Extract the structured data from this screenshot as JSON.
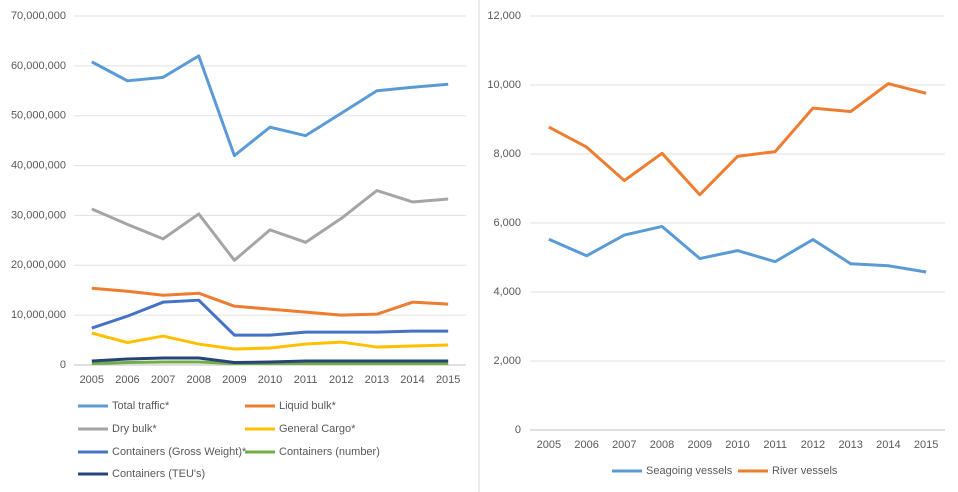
{
  "chart_data": [
    {
      "type": "line",
      "categories": [
        "2005",
        "2006",
        "2007",
        "2008",
        "2009",
        "2010",
        "2011",
        "2012",
        "2013",
        "2014",
        "2015"
      ],
      "ylim": [
        0,
        70000000
      ],
      "yticks": [
        0,
        {
          "value": 10000000,
          "label": "10,000,000"
        },
        {
          "value": 20000000,
          "label": "20,000,000"
        },
        {
          "value": 30000000,
          "label": "30,000,000"
        },
        {
          "value": 40000000,
          "label": "40,000,000"
        },
        {
          "value": 50000000,
          "label": "50,000,000"
        },
        {
          "value": 60000000,
          "label": "60,000,000"
        },
        {
          "value": 70000000,
          "label": "70,000,000"
        }
      ],
      "legend": "bottom",
      "series": [
        {
          "name": "Total traffic*",
          "color": "#5b9bd5",
          "values": [
            60800000,
            57000000,
            57700000,
            62000000,
            42000000,
            47700000,
            46000000,
            50500000,
            55000000,
            55700000,
            56300000
          ]
        },
        {
          "name": "Liquid bulk*",
          "color": "#ed7d31",
          "values": [
            15400000,
            14800000,
            14000000,
            14400000,
            11800000,
            11200000,
            10600000,
            10000000,
            10200000,
            12600000,
            12200000
          ]
        },
        {
          "name": "Dry bulk*",
          "color": "#a5a5a5",
          "values": [
            31300000,
            28200000,
            25300000,
            30300000,
            21000000,
            27100000,
            24600000,
            29400000,
            35000000,
            32700000,
            33300000
          ]
        },
        {
          "name": "General Cargo*",
          "color": "#ffc000",
          "values": [
            6400000,
            4500000,
            5800000,
            4200000,
            3200000,
            3400000,
            4200000,
            4600000,
            3600000,
            3800000,
            4000000
          ]
        },
        {
          "name": "Containers (Gross Weight)*",
          "color": "#4472c4",
          "values": [
            7400000,
            9800000,
            12600000,
            13000000,
            6000000,
            6000000,
            6600000,
            6600000,
            6600000,
            6800000,
            6800000
          ]
        },
        {
          "name": "Containers (number)",
          "color": "#70ad47",
          "values": [
            300000,
            500000,
            600000,
            600000,
            300000,
            300000,
            300000,
            300000,
            300000,
            300000,
            300000
          ]
        },
        {
          "name": "Containers (TEU's)",
          "color": "#264478",
          "values": [
            800000,
            1200000,
            1400000,
            1400000,
            500000,
            600000,
            800000,
            800000,
            800000,
            800000,
            800000
          ]
        }
      ]
    },
    {
      "type": "line",
      "categories": [
        "2005",
        "2006",
        "2007",
        "2008",
        "2009",
        "2010",
        "2011",
        "2012",
        "2013",
        "2014",
        "2015"
      ],
      "ylim": [
        0,
        12000
      ],
      "yticks": [
        0,
        {
          "value": 2000,
          "label": "2,000"
        },
        {
          "value": 4000,
          "label": "4,000"
        },
        {
          "value": 6000,
          "label": "6,000"
        },
        {
          "value": 8000,
          "label": "8,000"
        },
        {
          "value": 10000,
          "label": "10,000"
        },
        {
          "value": 12000,
          "label": "12,000"
        }
      ],
      "legend": "bottom",
      "series": [
        {
          "name": "Seagoing vessels",
          "color": "#5b9bd5",
          "values": [
            5530,
            5050,
            5650,
            5900,
            4970,
            5200,
            4880,
            5520,
            4820,
            4760,
            4580
          ]
        },
        {
          "name": "River vessels",
          "color": "#ed7d31",
          "values": [
            8780,
            8200,
            7230,
            8020,
            6820,
            7930,
            8070,
            9330,
            9230,
            10040,
            9760
          ]
        }
      ]
    }
  ]
}
